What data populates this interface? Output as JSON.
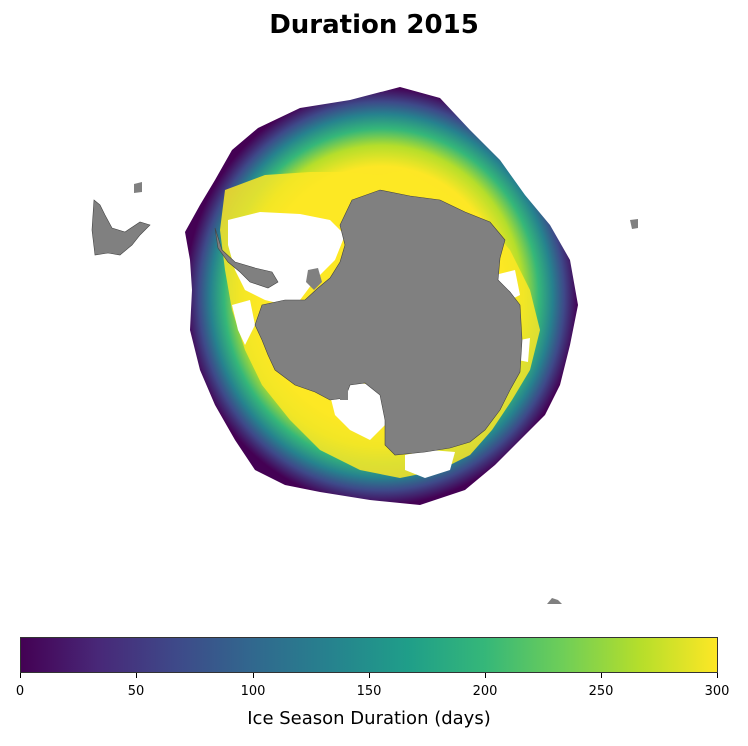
{
  "title": "Duration 2015",
  "colorbar": {
    "label": "Ice Season Duration (days)",
    "min": 0,
    "max": 300,
    "ticks": [
      "0",
      "50",
      "100",
      "150",
      "200",
      "250",
      "300"
    ],
    "colormap": [
      "#440154",
      "#482878",
      "#3e4989",
      "#31688e",
      "#26828e",
      "#1f9e89",
      "#35b779",
      "#6ece58",
      "#b5de2b",
      "#fde725"
    ]
  },
  "colors": {
    "land": "#808080",
    "no_data": "#ffffff"
  }
}
